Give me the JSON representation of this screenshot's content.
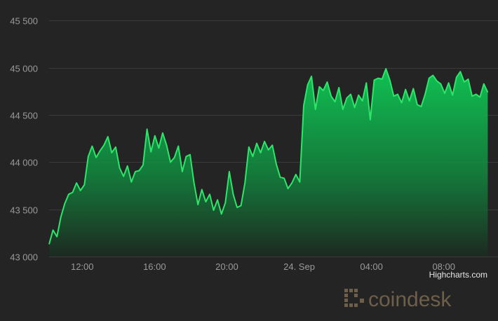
{
  "colors": {
    "background": "#242424",
    "gridline": "#3b3b3b",
    "line": "#2ee56a",
    "area_top": "#10c253",
    "area_bottom": "#1c2a20",
    "tick_text": "#9a9a9a",
    "watermark": "#6d5f49"
  },
  "credit": "Highcharts.com",
  "watermark": {
    "text": "coindesk",
    "icon": "coindesk-logo-icon"
  },
  "chart_data": {
    "type": "area",
    "title": "",
    "xlabel": "",
    "ylabel": "",
    "grid": true,
    "ylim": [
      43000,
      45600
    ],
    "y_ticks": [
      43000,
      43500,
      44000,
      44500,
      45000,
      45500
    ],
    "y_tick_labels": [
      "43 000",
      "43 500",
      "44 000",
      "44 500",
      "45 000",
      "45 500"
    ],
    "x_range": [
      "23 Sep 10:10",
      "24 Sep 10:25"
    ],
    "x_ticks": [
      "23 Sep 12:00",
      "23 Sep 16:00",
      "23 Sep 20:00",
      "24 Sep 00:00",
      "24 Sep 04:00",
      "24 Sep 08:00"
    ],
    "x_tick_labels": [
      "12:00",
      "16:00",
      "20:00",
      "24. Sep",
      "04:00",
      "08:00"
    ],
    "series": [
      {
        "x": [
          "23 Sep 10:10",
          "23 Sep 10:23",
          "23 Sep 10:36",
          "23 Sep 10:49",
          "23 Sep 11:02",
          "23 Sep 11:15",
          "23 Sep 11:28",
          "23 Sep 11:41",
          "23 Sep 11:54",
          "23 Sep 12:07",
          "23 Sep 12:20",
          "23 Sep 12:33",
          "23 Sep 12:46",
          "23 Sep 12:59",
          "23 Sep 13:12",
          "23 Sep 13:25",
          "23 Sep 13:38",
          "23 Sep 13:51",
          "23 Sep 14:04",
          "23 Sep 14:17",
          "23 Sep 14:30",
          "23 Sep 14:43",
          "23 Sep 14:56",
          "23 Sep 15:09",
          "23 Sep 15:22",
          "23 Sep 15:35",
          "23 Sep 15:48",
          "23 Sep 16:01",
          "23 Sep 16:14",
          "23 Sep 16:27",
          "23 Sep 16:40",
          "23 Sep 16:53",
          "23 Sep 17:06",
          "23 Sep 17:19",
          "23 Sep 17:32",
          "23 Sep 17:45",
          "23 Sep 17:58",
          "23 Sep 18:11",
          "23 Sep 18:24",
          "23 Sep 18:37",
          "23 Sep 18:50",
          "23 Sep 19:03",
          "23 Sep 19:16",
          "23 Sep 19:29",
          "23 Sep 19:42",
          "23 Sep 19:55",
          "23 Sep 20:08",
          "23 Sep 20:21",
          "23 Sep 20:34",
          "23 Sep 20:47",
          "23 Sep 21:00",
          "23 Sep 21:13",
          "23 Sep 21:26",
          "23 Sep 21:39",
          "23 Sep 21:52",
          "23 Sep 22:05",
          "23 Sep 22:18",
          "23 Sep 22:31",
          "23 Sep 22:44",
          "23 Sep 22:57",
          "23 Sep 23:10",
          "23 Sep 23:23",
          "23 Sep 23:36",
          "23 Sep 23:49",
          "24 Sep 00:02",
          "24 Sep 00:15",
          "24 Sep 00:28",
          "24 Sep 00:41",
          "24 Sep 00:54",
          "24 Sep 01:07",
          "24 Sep 01:20",
          "24 Sep 01:33",
          "24 Sep 01:46",
          "24 Sep 01:59",
          "24 Sep 02:12",
          "24 Sep 02:25",
          "24 Sep 02:38",
          "24 Sep 02:51",
          "24 Sep 03:04",
          "24 Sep 03:17",
          "24 Sep 03:30",
          "24 Sep 03:43",
          "24 Sep 03:56",
          "24 Sep 04:09",
          "24 Sep 04:22",
          "24 Sep 04:35",
          "24 Sep 04:48",
          "24 Sep 05:01",
          "24 Sep 05:14",
          "24 Sep 05:27",
          "24 Sep 05:40",
          "24 Sep 05:53",
          "24 Sep 06:06",
          "24 Sep 06:19",
          "24 Sep 06:32",
          "24 Sep 06:45",
          "24 Sep 06:58",
          "24 Sep 07:11",
          "24 Sep 07:24",
          "24 Sep 07:37",
          "24 Sep 07:50",
          "24 Sep 08:03",
          "24 Sep 08:16",
          "24 Sep 08:29",
          "24 Sep 08:42",
          "24 Sep 08:55",
          "24 Sep 09:08",
          "24 Sep 09:21",
          "24 Sep 09:34",
          "24 Sep 09:47",
          "24 Sep 10:00",
          "24 Sep 10:13",
          "24 Sep 10:26"
        ],
        "y": [
          43130,
          43280,
          43210,
          43420,
          43560,
          43660,
          43680,
          43780,
          43700,
          43760,
          44060,
          44170,
          44050,
          44120,
          44180,
          44270,
          44100,
          44160,
          43940,
          43850,
          43960,
          43790,
          43900,
          43910,
          43970,
          44350,
          44110,
          44280,
          44150,
          44310,
          44180,
          44000,
          44050,
          44170,
          43900,
          44060,
          44080,
          43780,
          43550,
          43710,
          43580,
          43660,
          43490,
          43600,
          43450,
          43570,
          43900,
          43660,
          43520,
          43540,
          43780,
          44160,
          44060,
          44200,
          44100,
          44220,
          44130,
          44180,
          43980,
          43840,
          43830,
          43720,
          43780,
          43870,
          43790,
          44600,
          44820,
          44910,
          44560,
          44800,
          44760,
          44850,
          44700,
          44640,
          44790,
          44560,
          44680,
          44720,
          44580,
          44710,
          44650,
          44840,
          44450,
          44870,
          44890,
          44880,
          44990,
          44870,
          44700,
          44720,
          44630,
          44770,
          44650,
          44780,
          44610,
          44590,
          44720,
          44890,
          44920,
          44860,
          44830,
          44730,
          44840,
          44710,
          44900,
          44960,
          44850,
          44880,
          44700,
          44720,
          44690,
          44830,
          44740
        ]
      }
    ]
  }
}
